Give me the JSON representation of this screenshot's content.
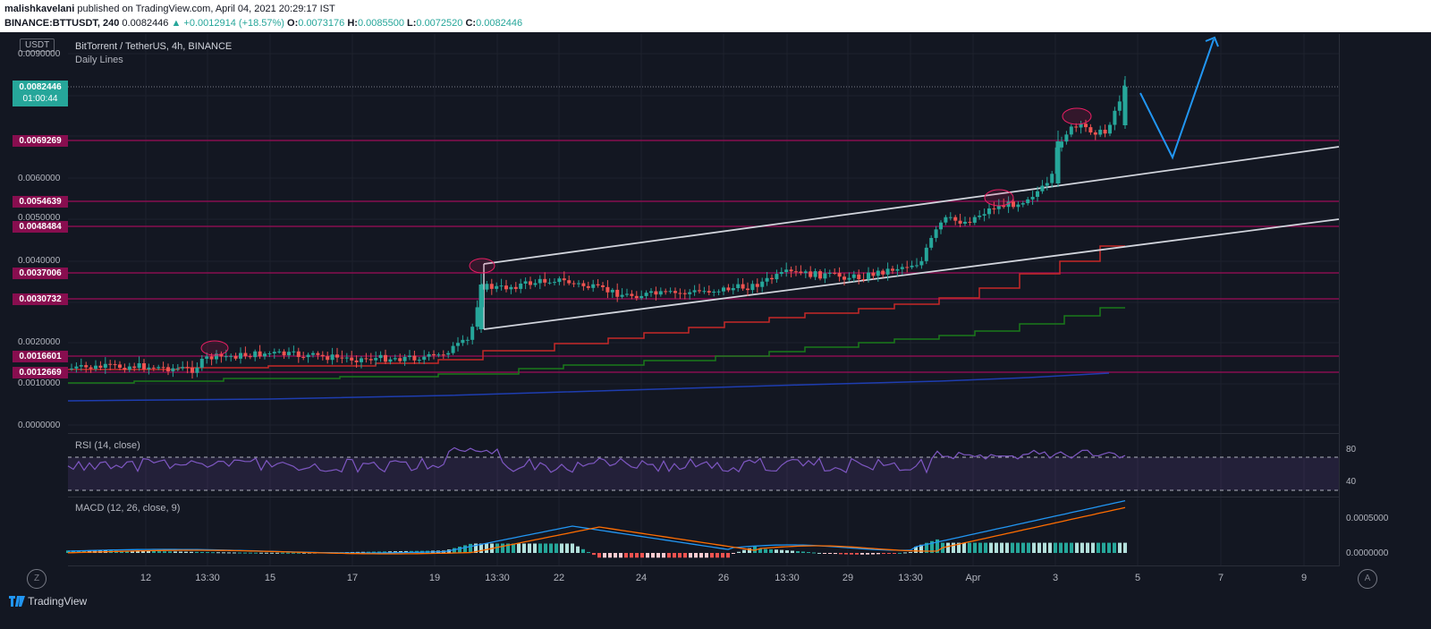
{
  "header": {
    "author": "malishkavelani",
    "published_text": " published on TradingView.com, April 04, 2021 20:29:17 IST",
    "symbol_line": "BINANCE:BTTUSDT, 240",
    "price": "0.0082446",
    "change": "▲ +0.0012914 (+18.57%)",
    "o_label": "O:",
    "o_value": "0.0073176",
    "h_label": "H:",
    "h_value": "0.0085500",
    "l_label": "L:",
    "l_value": "0.0072520",
    "c_label": "C:",
    "c_value": "0.0082446"
  },
  "chart": {
    "currency": "USDT",
    "title": "BitTorrent / TetherUS, 4h, BINANCE",
    "subtitle": "Daily Lines",
    "current_price": "0.0082446",
    "countdown": "01:00:44",
    "axis_labels": [
      "0.0090000",
      "0.0060000",
      "0.0050000",
      "0.0040000",
      "0.0020000",
      "0.0010000",
      "0.0000000"
    ],
    "levels": [
      "0.0069269",
      "0.0054639",
      "0.0048484",
      "0.0037006",
      "0.0030732",
      "0.0016601",
      "0.0012669"
    ]
  },
  "rsi": {
    "label": "RSI (14, close)",
    "upper": "80",
    "lower": "40"
  },
  "macd": {
    "label": "MACD (12, 26, close, 9)",
    "upper": "0.0005000",
    "lower": "0.0000000"
  },
  "x_axis": [
    "12",
    "13:30",
    "15",
    "17",
    "19",
    "13:30",
    "22",
    "24",
    "26",
    "13:30",
    "29",
    "13:30",
    "Apr",
    "3",
    "5",
    "7",
    "9"
  ],
  "footer": {
    "brand": "TradingView",
    "z_label": "Z",
    "a_label": "A"
  },
  "colors": {
    "background": "#131722",
    "level_line": "#880e4f",
    "bull": "#26a69a",
    "bear": "#ef5350",
    "channel": "#d1d4dc",
    "projection": "#2196f3"
  }
}
